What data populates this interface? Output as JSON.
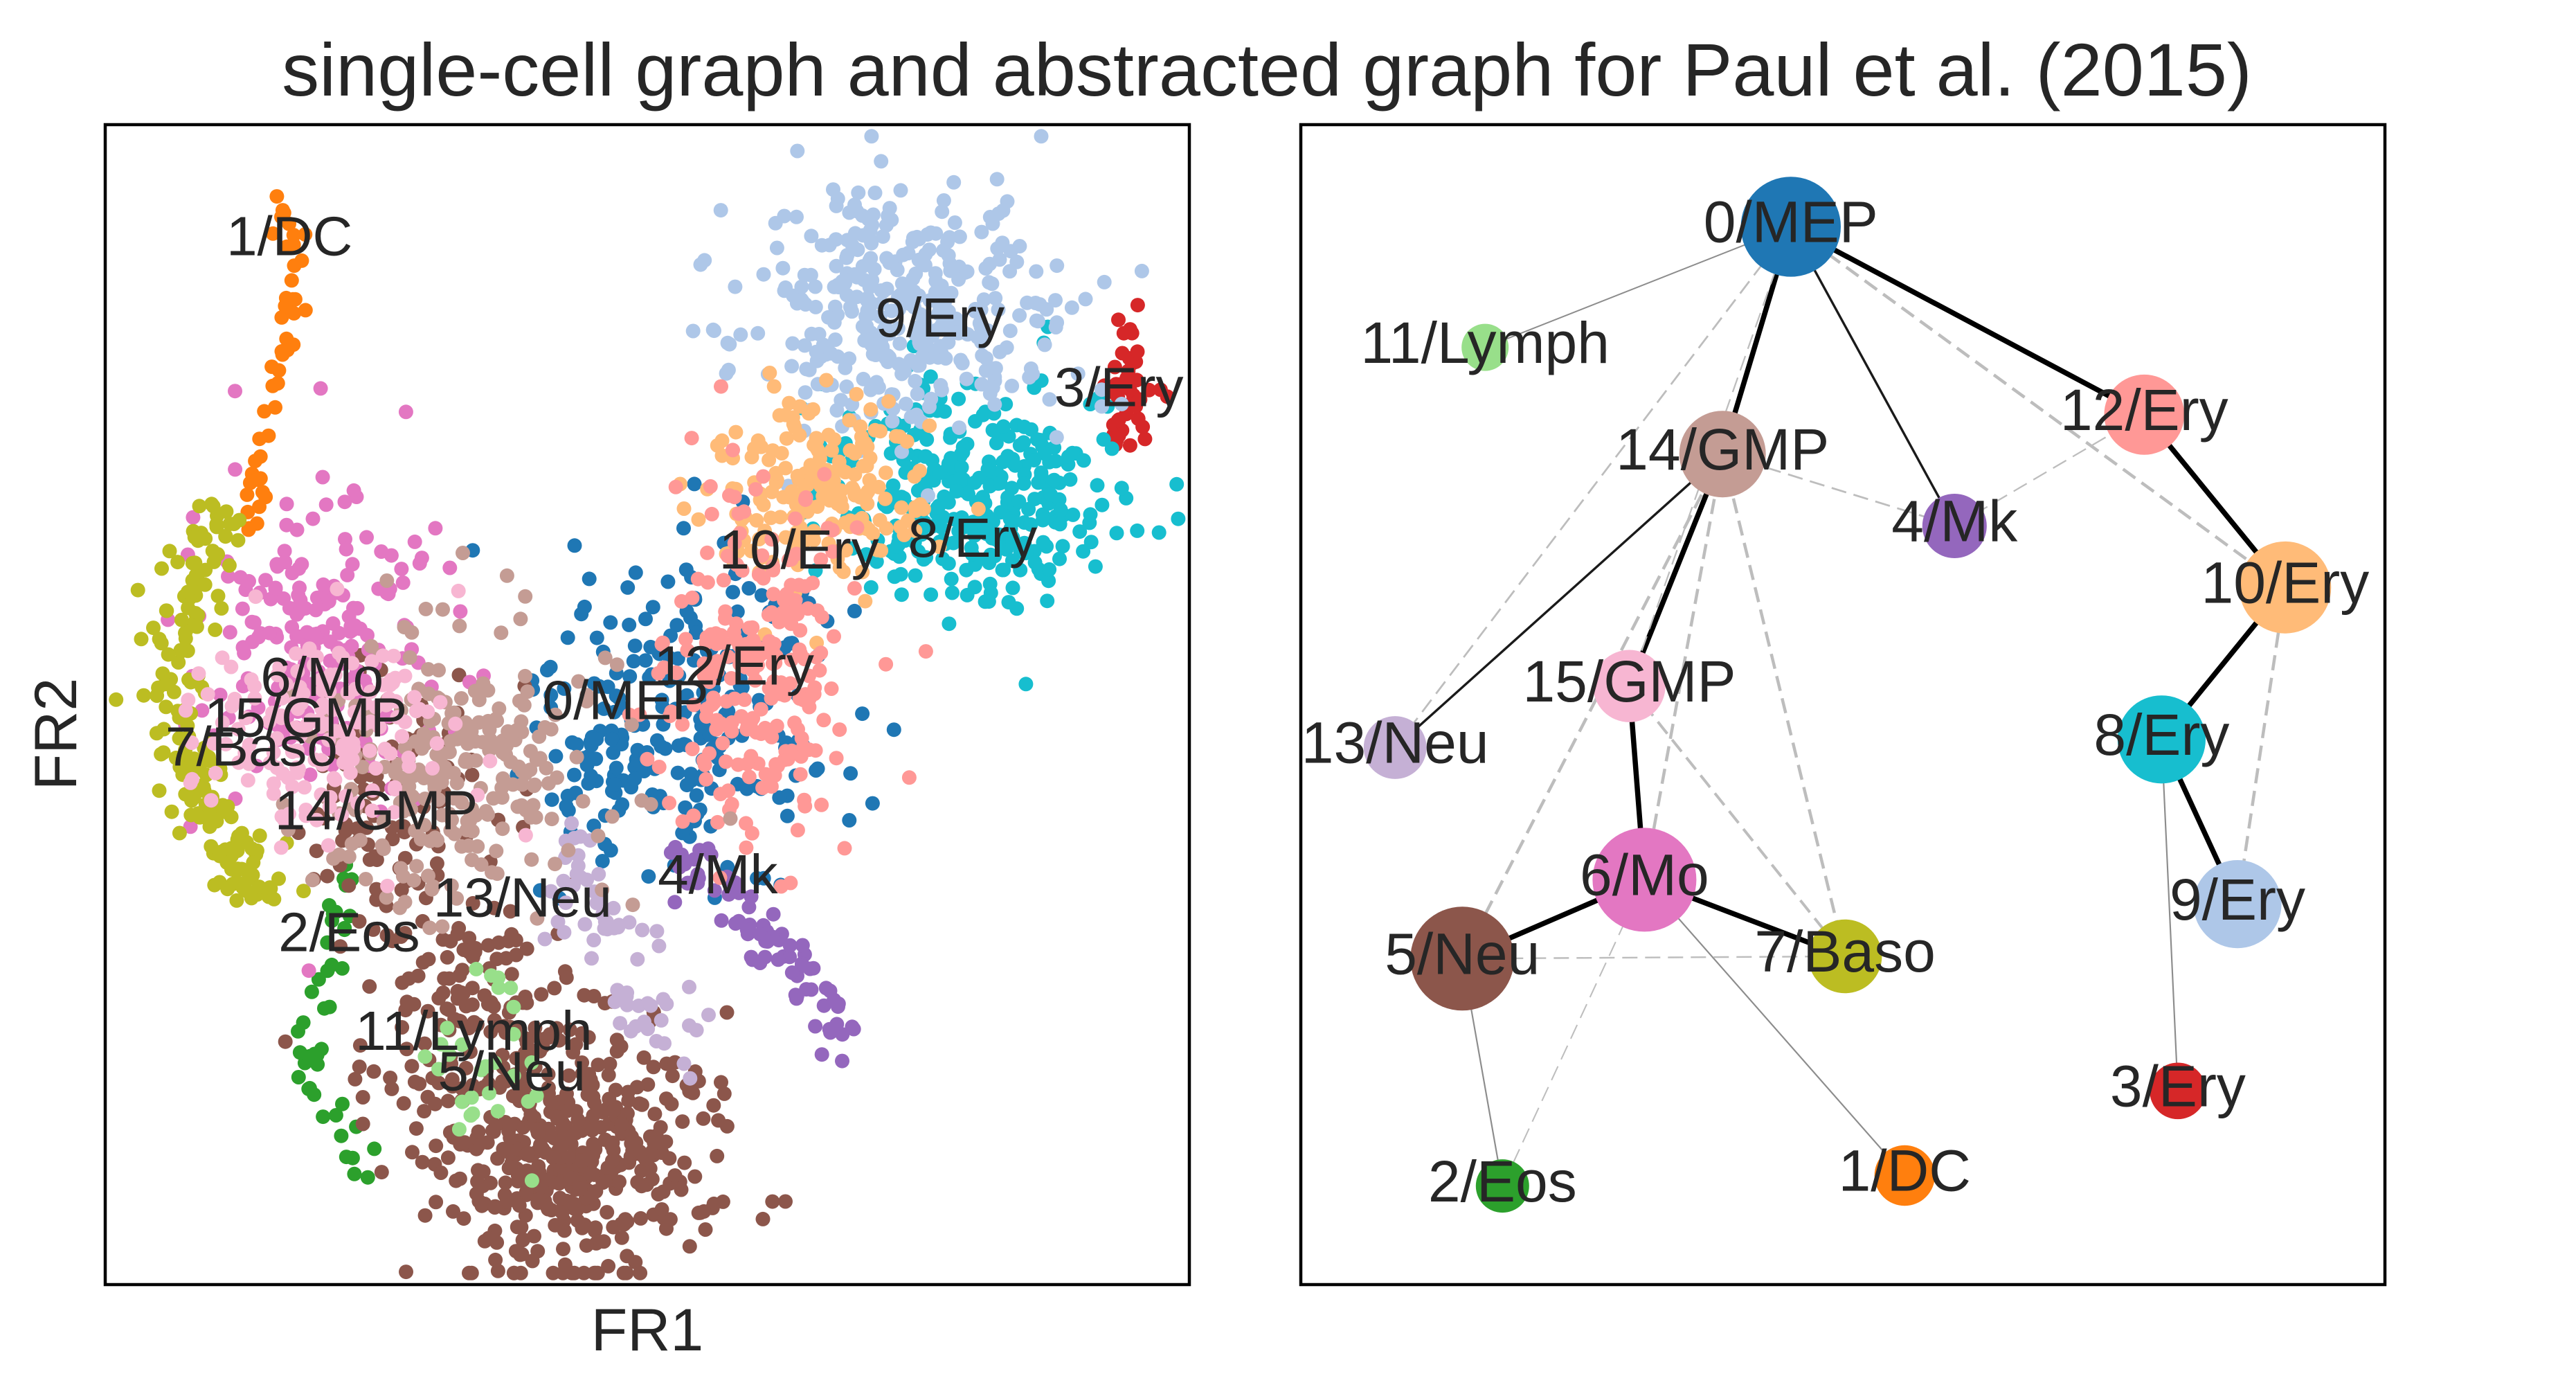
{
  "title": "single-cell graph and abstracted graph for Paul et al. (2015)",
  "chart_data": [
    {
      "type": "scatter",
      "panel": "single-cell graph",
      "xlabel": "FR1",
      "ylabel": "FR2",
      "xticks": [],
      "yticks": [],
      "grid": false,
      "xlim": [
        0,
        1
      ],
      "ylim": [
        0,
        1
      ],
      "clusters": [
        {
          "id": "0",
          "name": "0/MEP",
          "color": "#1f77b4",
          "n": 200,
          "center": [
            0.545,
            0.49
          ],
          "spread": [
            0.07,
            0.075
          ],
          "extra": [
            {
              "center": [
                0.48,
                0.43
              ],
              "spread": [
                0.04,
                0.03
              ],
              "n": 50
            }
          ],
          "label_pos": [
            0.48,
            0.5
          ]
        },
        {
          "id": "1",
          "name": "1/DC",
          "color": "#ff7f0e",
          "n": 48,
          "path": [
            [
              0.165,
              0.935
            ],
            [
              0.17,
              0.88
            ],
            [
              0.165,
              0.82
            ],
            [
              0.155,
              0.76
            ],
            [
              0.14,
              0.7
            ],
            [
              0.135,
              0.64
            ]
          ],
          "spread": [
            0.006,
            0.008
          ],
          "label_pos": [
            0.17,
            0.9
          ]
        },
        {
          "id": "2",
          "name": "2/Eos",
          "color": "#2ca02c",
          "n": 42,
          "path": [
            [
              0.225,
              0.37
            ],
            [
              0.21,
              0.3
            ],
            [
              0.195,
              0.22
            ],
            [
              0.185,
              0.16
            ],
            [
              0.24,
              0.12
            ],
            [
              0.23,
              0.09
            ]
          ],
          "spread": [
            0.009,
            0.009
          ],
          "label_pos": [
            0.225,
            0.3
          ]
        },
        {
          "id": "3",
          "name": "3/Ery",
          "color": "#d62728",
          "n": 42,
          "center": [
            0.94,
            0.77
          ],
          "spread": [
            0.012,
            0.03
          ],
          "label_pos": [
            0.935,
            0.77
          ]
        },
        {
          "id": "4",
          "name": "4/Mk",
          "color": "#9467bd",
          "n": 75,
          "path": [
            [
              0.53,
              0.37
            ],
            [
              0.58,
              0.33
            ],
            [
              0.62,
              0.29
            ],
            [
              0.66,
              0.24
            ],
            [
              0.69,
              0.2
            ]
          ],
          "spread": [
            0.012,
            0.015
          ],
          "label_pos": [
            0.565,
            0.35
          ]
        },
        {
          "id": "5",
          "name": "5/Neu",
          "color": "#8c564b",
          "n": 420,
          "center": [
            0.43,
            0.11
          ],
          "spread": [
            0.065,
            0.05
          ],
          "extra": [
            {
              "center": [
                0.345,
                0.24
              ],
              "spread": [
                0.055,
                0.055
              ],
              "n": 140
            },
            {
              "center": [
                0.27,
                0.43
              ],
              "spread": [
                0.04,
                0.05
              ],
              "n": 100
            }
          ],
          "label_pos": [
            0.375,
            0.18
          ]
        },
        {
          "id": "6",
          "name": "6/Mo",
          "color": "#e377c2",
          "n": 210,
          "center": [
            0.2,
            0.55
          ],
          "spread": [
            0.05,
            0.07
          ],
          "label_pos": [
            0.2,
            0.52
          ]
        },
        {
          "id": "7",
          "name": "7/Baso",
          "color": "#bcbd22",
          "n": 190,
          "path": [
            [
              0.11,
              0.67
            ],
            [
              0.075,
              0.6
            ],
            [
              0.065,
              0.52
            ],
            [
              0.08,
              0.44
            ],
            [
              0.11,
              0.38
            ],
            [
              0.15,
              0.34
            ]
          ],
          "spread": [
            0.015,
            0.015
          ],
          "label_pos": [
            0.135,
            0.46
          ]
        },
        {
          "id": "8",
          "name": "8/Ery",
          "color": "#17becf",
          "n": 320,
          "center": [
            0.8,
            0.68
          ],
          "spread": [
            0.065,
            0.05
          ],
          "label_pos": [
            0.8,
            0.64
          ]
        },
        {
          "id": "9",
          "name": "9/Ery",
          "color": "#aec7e8",
          "n": 360,
          "center": [
            0.74,
            0.84
          ],
          "spread": [
            0.075,
            0.055
          ],
          "label_pos": [
            0.77,
            0.83
          ]
        },
        {
          "id": "10",
          "name": "10/Ery",
          "color": "#ffbb78",
          "n": 200,
          "center": [
            0.66,
            0.69
          ],
          "spread": [
            0.05,
            0.045
          ],
          "label_pos": [
            0.64,
            0.63
          ]
        },
        {
          "id": "11",
          "name": "11/Lymph",
          "color": "#98df8a",
          "n": 28,
          "center": [
            0.36,
            0.19
          ],
          "spread": [
            0.03,
            0.05
          ],
          "label_pos": [
            0.34,
            0.215
          ]
        },
        {
          "id": "12",
          "name": "12/Ery",
          "color": "#ff9896",
          "n": 240,
          "center": [
            0.6,
            0.53
          ],
          "spread": [
            0.045,
            0.075
          ],
          "label_pos": [
            0.58,
            0.53
          ]
        },
        {
          "id": "13",
          "name": "13/Neu",
          "color": "#c5b0d5",
          "n": 65,
          "path": [
            [
              0.44,
              0.39
            ],
            [
              0.45,
              0.32
            ],
            [
              0.5,
              0.24
            ],
            [
              0.53,
              0.21
            ]
          ],
          "spread": [
            0.018,
            0.015
          ],
          "label_pos": [
            0.385,
            0.33
          ]
        },
        {
          "id": "14",
          "name": "14/GMP",
          "color": "#c49c94",
          "n": 240,
          "center": [
            0.32,
            0.44
          ],
          "spread": [
            0.065,
            0.06
          ],
          "label_pos": [
            0.25,
            0.405
          ]
        },
        {
          "id": "15",
          "name": "15/GMP",
          "color": "#f7b6d2",
          "n": 170,
          "center": [
            0.2,
            0.47
          ],
          "spread": [
            0.055,
            0.045
          ],
          "label_pos": [
            0.185,
            0.485
          ]
        }
      ]
    },
    {
      "type": "graph",
      "panel": "abstracted graph",
      "xticks": [],
      "yticks": [],
      "grid": false,
      "xlim": [
        0,
        1
      ],
      "ylim": [
        0,
        1
      ],
      "nodes": [
        {
          "id": "0",
          "label": "0/MEP",
          "color": "#1f77b4",
          "x": 0.452,
          "y": 0.912,
          "size": 0.95
        },
        {
          "id": "1",
          "label": "1/DC",
          "color": "#ff7f0e",
          "x": 0.557,
          "y": 0.094,
          "size": 0.45
        },
        {
          "id": "2",
          "label": "2/Eos",
          "color": "#2ca02c",
          "x": 0.186,
          "y": 0.085,
          "size": 0.36
        },
        {
          "id": "3",
          "label": "3/Ery",
          "color": "#d62728",
          "x": 0.809,
          "y": 0.167,
          "size": 0.4
        },
        {
          "id": "4",
          "label": "4/Mk",
          "color": "#9467bd",
          "x": 0.603,
          "y": 0.654,
          "size": 0.5
        },
        {
          "id": "5",
          "label": "5/Neu",
          "color": "#8c564b",
          "x": 0.149,
          "y": 0.281,
          "size": 1.0
        },
        {
          "id": "6",
          "label": "6/Mo",
          "color": "#e377c2",
          "x": 0.317,
          "y": 0.349,
          "size": 1.0
        },
        {
          "id": "7",
          "label": "7/Baso",
          "color": "#bcbd22",
          "x": 0.502,
          "y": 0.283,
          "size": 0.62
        },
        {
          "id": "8",
          "label": "8/Ery",
          "color": "#17becf",
          "x": 0.794,
          "y": 0.47,
          "size": 0.8
        },
        {
          "id": "9",
          "label": "9/Ery",
          "color": "#aec7e8",
          "x": 0.864,
          "y": 0.328,
          "size": 0.8
        },
        {
          "id": "10",
          "label": "10/Ery",
          "color": "#ffbb78",
          "x": 0.908,
          "y": 0.601,
          "size": 0.85
        },
        {
          "id": "11",
          "label": "11/Lymph",
          "color": "#98df8a",
          "x": 0.17,
          "y": 0.808,
          "size": 0.28
        },
        {
          "id": "12",
          "label": "12/Ery",
          "color": "#ff9896",
          "x": 0.778,
          "y": 0.75,
          "size": 0.7
        },
        {
          "id": "13",
          "label": "13/Neu",
          "color": "#c5b0d5",
          "x": 0.087,
          "y": 0.463,
          "size": 0.48
        },
        {
          "id": "14",
          "label": "14/GMP",
          "color": "#c49c94",
          "x": 0.389,
          "y": 0.716,
          "size": 0.78
        },
        {
          "id": "15",
          "label": "15/GMP",
          "color": "#f7b6d2",
          "x": 0.303,
          "y": 0.516,
          "size": 0.6
        }
      ],
      "edges": [
        {
          "source": "0",
          "target": "14",
          "style": "solid",
          "weight": 1.0
        },
        {
          "source": "0",
          "target": "12",
          "style": "solid",
          "weight": 1.0
        },
        {
          "source": "12",
          "target": "10",
          "style": "solid",
          "weight": 1.0
        },
        {
          "source": "10",
          "target": "8",
          "style": "solid",
          "weight": 1.0
        },
        {
          "source": "8",
          "target": "9",
          "style": "solid",
          "weight": 1.0
        },
        {
          "source": "14",
          "target": "15",
          "style": "solid",
          "weight": 1.0
        },
        {
          "source": "15",
          "target": "6",
          "style": "solid",
          "weight": 1.0
        },
        {
          "source": "6",
          "target": "5",
          "style": "solid",
          "weight": 1.0
        },
        {
          "source": "6",
          "target": "7",
          "style": "solid",
          "weight": 1.0
        },
        {
          "source": "0",
          "target": "4",
          "style": "solid",
          "weight": 0.35
        },
        {
          "source": "14",
          "target": "13",
          "style": "solid",
          "weight": 0.35
        },
        {
          "source": "0",
          "target": "11",
          "style": "solid",
          "weight": 0.12
        },
        {
          "source": "5",
          "target": "2",
          "style": "solid",
          "weight": 0.15
        },
        {
          "source": "6",
          "target": "1",
          "style": "solid",
          "weight": 0.15
        },
        {
          "source": "8",
          "target": "3",
          "style": "solid",
          "weight": 0.15
        },
        {
          "source": "0",
          "target": "10",
          "style": "dashed",
          "weight": 0.6
        },
        {
          "source": "10",
          "target": "9",
          "style": "dashed",
          "weight": 0.6
        },
        {
          "source": "14",
          "target": "6",
          "style": "dashed",
          "weight": 0.6
        },
        {
          "source": "14",
          "target": "5",
          "style": "dashed",
          "weight": 0.6
        },
        {
          "source": "14",
          "target": "7",
          "style": "dashed",
          "weight": 0.6
        },
        {
          "source": "15",
          "target": "7",
          "style": "dashed",
          "weight": 0.5
        },
        {
          "source": "0",
          "target": "13",
          "style": "dashed",
          "weight": 0.25
        },
        {
          "source": "14",
          "target": "4",
          "style": "dashed",
          "weight": 0.25
        },
        {
          "source": "5",
          "target": "7",
          "style": "dashed",
          "weight": 0.18
        },
        {
          "source": "4",
          "target": "12",
          "style": "dashed",
          "weight": 0.15
        },
        {
          "source": "0",
          "target": "15",
          "style": "dashed",
          "weight": 0.15
        },
        {
          "source": "6",
          "target": "2",
          "style": "dashed",
          "weight": 0.1
        }
      ]
    }
  ]
}
